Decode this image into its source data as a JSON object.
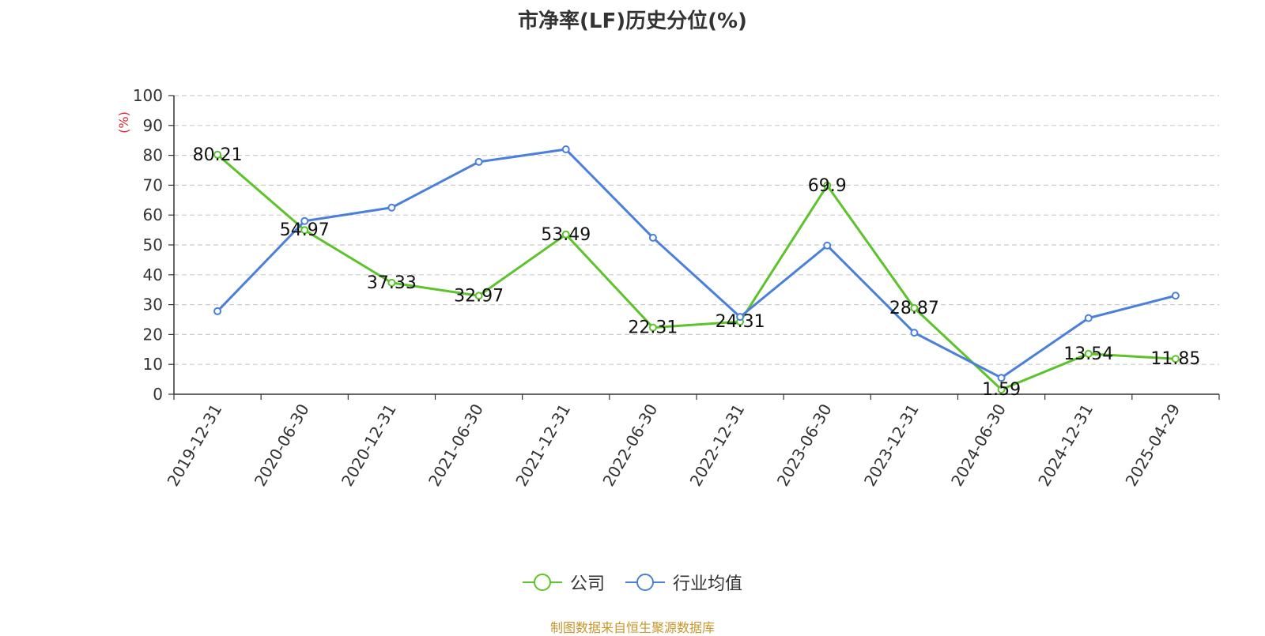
{
  "source_note": "制图数据来自恒生聚源数据库",
  "chart_data": {
    "type": "line",
    "title": "市净率(LF)历史分位(%)",
    "ylabel": "(%)",
    "xlabel": "",
    "ylim": [
      0,
      100
    ],
    "yticks": [
      0,
      10,
      20,
      30,
      40,
      50,
      60,
      70,
      80,
      90,
      100
    ],
    "grid": true,
    "legend_position": "bottom",
    "categories": [
      "2019-12-31",
      "2020-06-30",
      "2020-12-31",
      "2021-06-30",
      "2021-12-31",
      "2022-06-30",
      "2022-12-31",
      "2023-06-30",
      "2023-12-31",
      "2024-06-30",
      "2024-12-31",
      "2025-04-29"
    ],
    "series": [
      {
        "name": "公司",
        "color": "#5cc42a",
        "values": [
          80.21,
          54.97,
          37.33,
          32.97,
          53.49,
          22.31,
          24.31,
          69.9,
          28.87,
          1.59,
          13.54,
          11.85
        ],
        "labels": [
          "80.21",
          "54.97",
          "37.33",
          "32.97",
          "53.49",
          "22.31",
          "24.31",
          "69.9",
          "28.87",
          "1.59",
          "13.54",
          "11.85"
        ]
      },
      {
        "name": "行业均值",
        "color": "#4a7fdc",
        "values": [
          27.8,
          58.0,
          62.5,
          77.8,
          82.0,
          52.4,
          25.9,
          49.8,
          20.6,
          5.5,
          25.5,
          33.0
        ]
      }
    ]
  }
}
